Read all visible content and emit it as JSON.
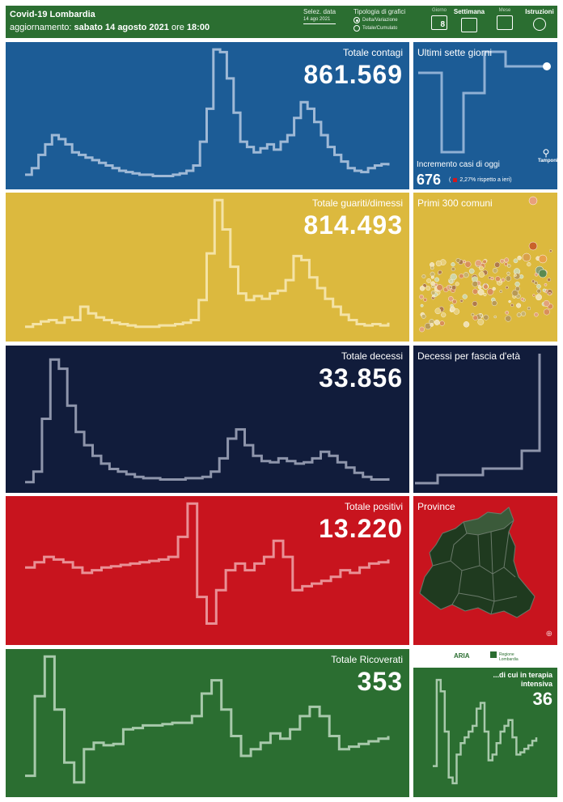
{
  "header": {
    "title": "Covid-19 Lombardia",
    "update_prefix": "aggiornamento:",
    "update_date": "sabato 14 agosto 2021",
    "update_ore": "ore",
    "update_time": "18:00",
    "date_select_label": "Selez. data",
    "date_select_value": "14 ago 2021",
    "chart_type_label": "Tipologia di grafici",
    "chart_type_options": [
      "Delta/Variazione",
      "Totale/Cumulato"
    ],
    "chart_type_selected": "Delta/Variazione",
    "nav": [
      {
        "label": "Giorno",
        "icon": "calendar-day-icon",
        "value": "8"
      },
      {
        "label": "Settimana",
        "icon": "calendar-week-icon"
      },
      {
        "label": "Mese",
        "icon": "calendar-month-icon"
      },
      {
        "label": "Istruzioni",
        "icon": "gear-icon"
      }
    ],
    "nav_active": "Settimana"
  },
  "panels": {
    "contagi": {
      "label": "Totale contagi",
      "value": "861.569",
      "color": "#1c5c96"
    },
    "guariti": {
      "label": "Totale guariti/dimessi",
      "value": "814.493",
      "color": "#dcb93e"
    },
    "decessi": {
      "label": "Totale decessi",
      "value": "33.856",
      "color": "#111c3b"
    },
    "positivi": {
      "label": "Totale positivi",
      "value": "13.220",
      "color": "#c8141e"
    },
    "ricoverati": {
      "label": "Totale Ricoverati",
      "value": "353",
      "color": "#2b6e31"
    }
  },
  "side": {
    "sette": {
      "title": "Ultimi sette giorni",
      "incr_label": "Incremento casi di oggi",
      "value": "676",
      "pct_open": "(",
      "pct": "2,27% rispetto a  ieri)",
      "tamponi": "Tamponi"
    },
    "comuni": {
      "title": "Primi 300 comuni"
    },
    "eta": {
      "title": "Decessi per fascia d'età"
    },
    "province": {
      "title": "Province"
    },
    "logos": {
      "aria": "ARIA",
      "regione": "Regione Lombardia"
    },
    "terapia": {
      "label": "...di cui in terapia intensiva",
      "value": "36"
    }
  }
}
